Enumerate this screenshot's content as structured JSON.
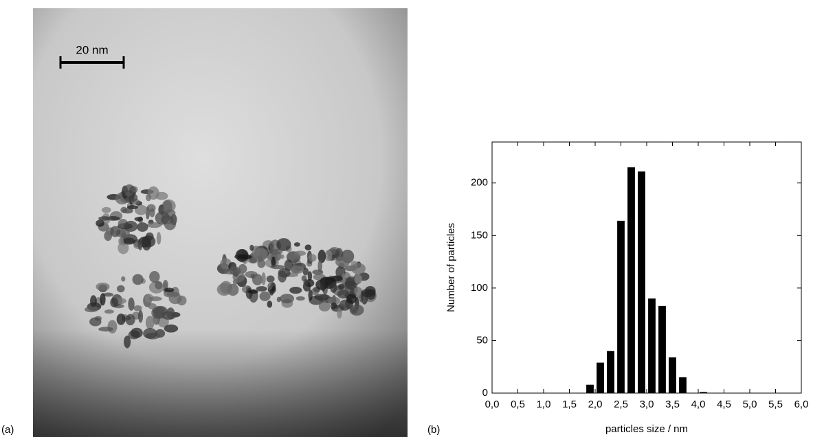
{
  "panels": {
    "a": {
      "label": "(a)",
      "scale_bar": "20 nm"
    },
    "b": {
      "label": "(b)"
    }
  },
  "chart_data": {
    "type": "bar",
    "x_label": "particles size / nm",
    "y_label": "Number of particles",
    "x": [
      1.9,
      2.1,
      2.3,
      2.5,
      2.7,
      2.9,
      3.1,
      3.3,
      3.5,
      3.7,
      4.1
    ],
    "values": [
      8,
      29,
      40,
      164,
      215,
      211,
      90,
      83,
      34,
      15,
      1
    ],
    "color": "#000000",
    "xlim": [
      0,
      6
    ],
    "xticks": [
      {
        "value": 0,
        "label": "0,0"
      },
      {
        "value": 0.5,
        "label": "0,5"
      },
      {
        "value": 1,
        "label": "1,0"
      },
      {
        "value": 1.5,
        "label": "1,5"
      },
      {
        "value": 2,
        "label": "2,0"
      },
      {
        "value": 2.5,
        "label": "2,5"
      },
      {
        "value": 3,
        "label": "3,0"
      },
      {
        "value": 3.5,
        "label": "3,5"
      },
      {
        "value": 4,
        "label": "4,0"
      },
      {
        "value": 4.5,
        "label": "4,5"
      },
      {
        "value": 5,
        "label": "5,0"
      },
      {
        "value": 5.5,
        "label": "5,5"
      },
      {
        "value": 6,
        "label": "6,0"
      }
    ],
    "ylim": [
      0,
      239
    ],
    "yticks": [
      0,
      50,
      100,
      150,
      200
    ]
  }
}
